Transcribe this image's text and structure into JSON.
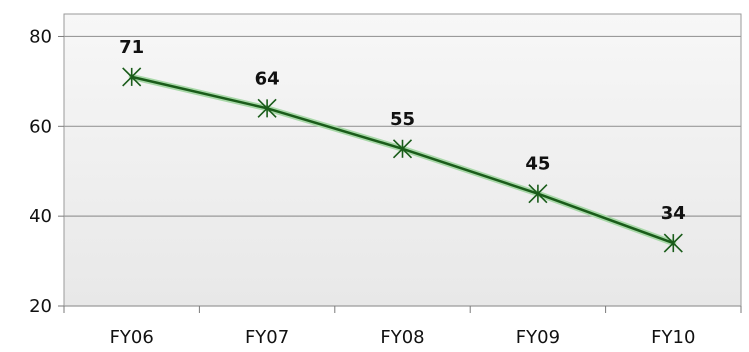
{
  "chart_data": {
    "type": "line",
    "title": "",
    "xlabel": "",
    "ylabel": "",
    "categories": [
      "FY06",
      "FY07",
      "FY08",
      "FY09",
      "FY10"
    ],
    "series": [
      {
        "values": [
          71,
          64,
          55,
          45,
          34
        ],
        "color": "#1a5c1a",
        "marker": "x-star"
      }
    ],
    "data_labels": [
      "71",
      "64",
      "55",
      "45",
      "34"
    ],
    "ylim": [
      20,
      85
    ],
    "yticks": [
      20,
      40,
      60,
      80
    ],
    "ytick_labels": [
      "20",
      "40",
      "60",
      "80"
    ],
    "grid": true,
    "legend": "none",
    "colors": {
      "plot_background": "#f2f2f2",
      "gridline": "#9a9a9a",
      "line": "#1a5c1a",
      "line_glow": "#a8d8a8"
    }
  }
}
